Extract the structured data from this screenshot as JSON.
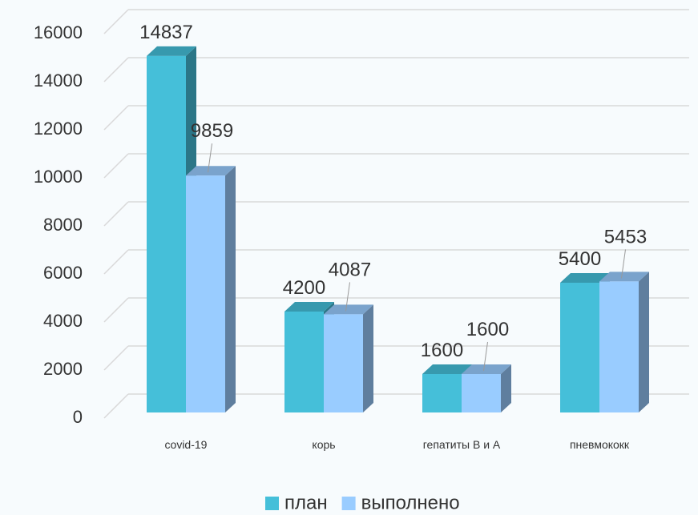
{
  "chart_data": {
    "type": "bar3d",
    "categories": [
      "covid-19",
      "корь",
      "гепатиты В и А",
      "пневмококк"
    ],
    "series": [
      {
        "name": "план",
        "color": "#45bfd9",
        "values": [
          14837,
          4200,
          1600,
          5400
        ]
      },
      {
        "name": "выполнено",
        "color": "#99ccff",
        "values": [
          9859,
          4087,
          1600,
          5453
        ]
      }
    ],
    "ylim": [
      0,
      16000
    ],
    "yticks": [
      0,
      2000,
      4000,
      6000,
      8000,
      10000,
      12000,
      14000,
      16000
    ],
    "grid": true,
    "legend": "bottom"
  }
}
